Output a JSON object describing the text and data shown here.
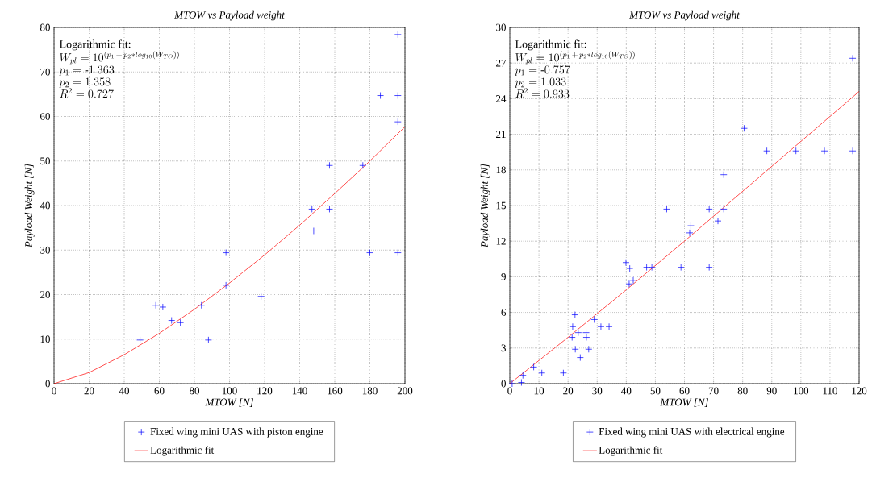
{
  "chart_data": [
    {
      "type": "scatter",
      "title": "MTOW vs Payload weight",
      "xlabel": "MTOW [N]",
      "ylabel": "Payload Weight [N]",
      "xlim": [
        0,
        200
      ],
      "ylim": [
        0,
        80
      ],
      "xticks": [
        0,
        20,
        40,
        60,
        80,
        100,
        120,
        140,
        160,
        180,
        200
      ],
      "yticks": [
        0,
        10,
        20,
        30,
        40,
        50,
        60,
        70,
        80
      ],
      "grid": true,
      "legend": "bottom",
      "annotations": [
        "Logarithmic fit:",
        "W_{pl} = 10^{(p_1\\,+\\,p_2 * log_{10}(W_{TO}))}",
        "p_1 = \\mbox{-}1.363",
        "p_2 = 1.358",
        "R^2 = 0.727"
      ],
      "series": [
        {
          "name": "Fixed wing mini UAS with piston engine",
          "type": "scatter",
          "marker": "cross",
          "color": "#0000ff",
          "x": [
            49,
            58,
            62,
            67,
            72,
            84,
            88,
            98,
            98,
            118,
            147,
            148,
            157,
            157,
            176,
            180,
            186,
            196,
            196,
            196,
            196
          ],
          "values": [
            9.8,
            17.6,
            17.2,
            14.2,
            13.7,
            17.6,
            9.8,
            29.4,
            22.1,
            19.6,
            39.2,
            34.3,
            49,
            39.2,
            49,
            29.4,
            64.7,
            78.4,
            64.7,
            58.8,
            29.4
          ]
        },
        {
          "name": "Logarithmic fit",
          "type": "line",
          "marker": "none",
          "color": "#ff0000",
          "x": [
            0,
            20,
            40,
            60,
            80,
            100,
            120,
            140,
            160,
            180,
            200
          ],
          "values": [
            0,
            2.5,
            6.5,
            11.3,
            16.7,
            22.6,
            28.9,
            35.6,
            42.7,
            50.0,
            57.7
          ]
        }
      ]
    },
    {
      "type": "scatter",
      "title": "MTOW vs Payload weight",
      "xlabel": "MTOW [N]",
      "ylabel": "Payload Weight [N]",
      "xlim": [
        0,
        120
      ],
      "ylim": [
        0,
        30
      ],
      "xticks": [
        0,
        10,
        20,
        30,
        40,
        50,
        60,
        70,
        80,
        90,
        100,
        110,
        120
      ],
      "yticks": [
        0,
        3,
        6,
        9,
        12,
        15,
        18,
        21,
        24,
        27,
        30
      ],
      "grid": true,
      "legend": "bottom",
      "annotations": [
        "Logarithmic fit:",
        "W_{pl} = 10^{(p_1\\,+\\,p_2 * log_{10}(W_{TO}))}",
        "p_1 = \\mbox{-}0.757",
        "p_2 = 1.033",
        "R^2 = 0.933"
      ],
      "series": [
        {
          "name": "Fixed wing mini UAS with electrical engine",
          "type": "scatter",
          "marker": "cross",
          "color": "#0000ff",
          "x": [
            0.8,
            4,
            4.5,
            8.2,
            11,
            18.4,
            22.4,
            21.6,
            21.4,
            22.5,
            23.5,
            24.2,
            26.2,
            26.3,
            27.1,
            29,
            31.3,
            34.1,
            39.9,
            41.2,
            41,
            42.4,
            47,
            48.8,
            53.9,
            58.8,
            61.8,
            62.2,
            68.5,
            68.5,
            71.5,
            73.5,
            73.5,
            80.5,
            88.3,
            98.3,
            108.1,
            117.8,
            117.8
          ],
          "values": [
            0,
            0.1,
            0.7,
            1.4,
            0.9,
            0.9,
            5.8,
            4.8,
            3.9,
            2.9,
            4.3,
            2.2,
            4.3,
            3.9,
            2.9,
            5.4,
            4.8,
            4.8,
            10.2,
            9.7,
            8.4,
            8.7,
            9.8,
            9.8,
            14.7,
            9.8,
            12.7,
            13.3,
            14.7,
            9.8,
            13.7,
            14.7,
            17.6,
            21.5,
            19.6,
            19.6,
            19.6,
            19.6,
            27.4
          ]
        },
        {
          "name": "Logarithmic fit",
          "type": "line",
          "marker": "none",
          "color": "#ff0000",
          "x": [
            0,
            20,
            40,
            60,
            80,
            100,
            120
          ],
          "values": [
            0,
            3.9,
            7.9,
            12.0,
            16.2,
            20.4,
            24.6
          ]
        }
      ]
    }
  ]
}
